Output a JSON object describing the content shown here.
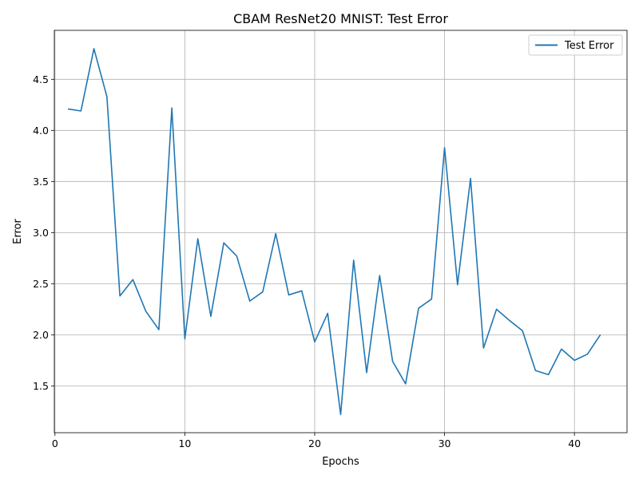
{
  "chart_data": {
    "type": "line",
    "title": "CBAM ResNet20 MNIST: Test Error",
    "xlabel": "Epochs",
    "ylabel": "Error",
    "xlim": [
      -0.05,
      44.05
    ],
    "ylim": [
      1.042,
      4.979
    ],
    "xticks": [
      0,
      10,
      20,
      30,
      40
    ],
    "yticks": [
      1.5,
      2.0,
      2.5,
      3.0,
      3.5,
      4.0,
      4.5
    ],
    "xtick_labels": [
      "0",
      "10",
      "20",
      "30",
      "40"
    ],
    "ytick_labels": [
      "1.5",
      "2.0",
      "2.5",
      "3.0",
      "3.5",
      "4.0",
      "4.5"
    ],
    "grid": true,
    "legend_position": "top-right",
    "series": [
      {
        "name": "Test Error",
        "color": "#1f77b4",
        "x": [
          1,
          2,
          3,
          4,
          5,
          6,
          7,
          8,
          9,
          10,
          11,
          12,
          13,
          14,
          15,
          16,
          17,
          18,
          19,
          20,
          21,
          22,
          23,
          24,
          25,
          26,
          27,
          28,
          29,
          30,
          31,
          32,
          33,
          34,
          35,
          36,
          37,
          38,
          39,
          40,
          41,
          42
        ],
        "values": [
          4.21,
          4.19,
          4.8,
          4.33,
          2.38,
          2.54,
          2.23,
          2.05,
          4.22,
          1.96,
          2.94,
          2.18,
          2.9,
          2.77,
          2.33,
          2.42,
          2.99,
          2.39,
          2.43,
          1.93,
          2.21,
          1.22,
          2.73,
          1.63,
          2.58,
          1.74,
          1.52,
          2.26,
          2.35,
          3.83,
          2.49,
          3.53,
          1.87,
          2.25,
          2.14,
          2.04,
          1.65,
          1.61,
          1.86,
          1.75,
          1.81,
          2.0
        ]
      }
    ]
  }
}
